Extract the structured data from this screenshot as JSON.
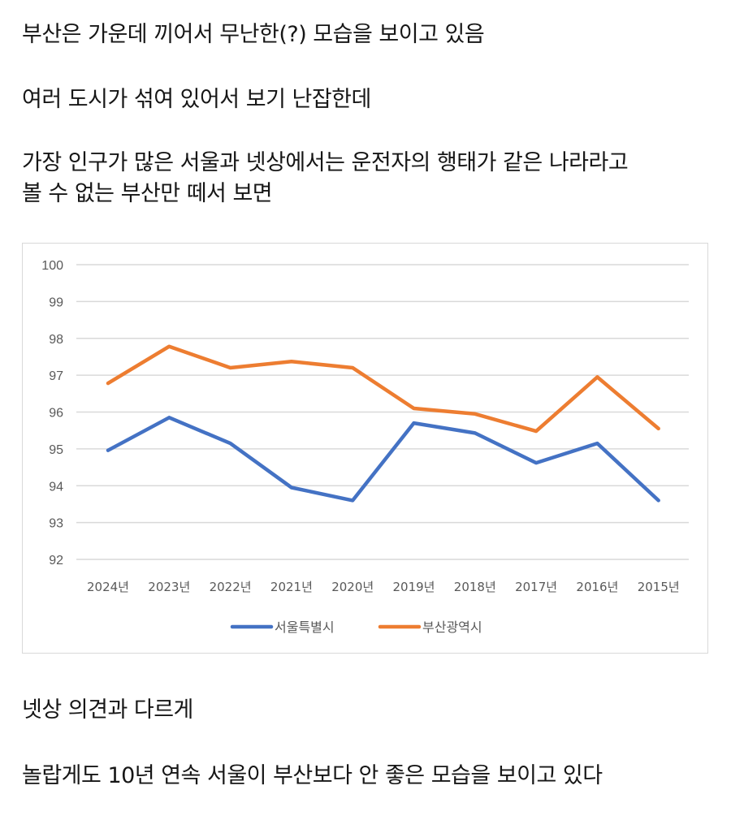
{
  "text": {
    "p1": "부산은 가운데 끼어서 무난한(?) 모습을 보이고 있음",
    "p2": "여러 도시가 섞여 있어서 보기 난잡한데",
    "p3_line1": "가장 인구가 많은 서울과 넷상에서는 운전자의 행태가 같은 나라라고",
    "p3_line2": "볼 수 없는 부산만 떼서 보면",
    "p4": "넷상 의견과 다르게",
    "p5": "놀랍게도 10년 연속 서울이 부산보다 안 좋은 모습을 보이고 있다"
  },
  "chart_data": {
    "type": "line",
    "title": "",
    "xlabel": "",
    "ylabel": "",
    "categories": [
      "2024년",
      "2023년",
      "2022년",
      "2021년",
      "2020년",
      "2019년",
      "2018년",
      "2017년",
      "2016년",
      "2015년"
    ],
    "series": [
      {
        "name": "서울특별시",
        "color": "#4472C4",
        "values": [
          94.96,
          95.85,
          95.15,
          93.95,
          93.6,
          95.7,
          95.43,
          94.62,
          95.15,
          93.6
        ]
      },
      {
        "name": "부산광역시",
        "color": "#ED7D31",
        "values": [
          96.78,
          97.78,
          97.2,
          97.37,
          97.2,
          96.1,
          95.95,
          95.48,
          96.95,
          95.55
        ]
      }
    ],
    "ylim": [
      92,
      100
    ],
    "yticks": [
      100,
      99,
      98,
      97,
      96,
      95,
      94,
      93,
      92
    ],
    "grid": true,
    "legend_position": "bottom"
  }
}
